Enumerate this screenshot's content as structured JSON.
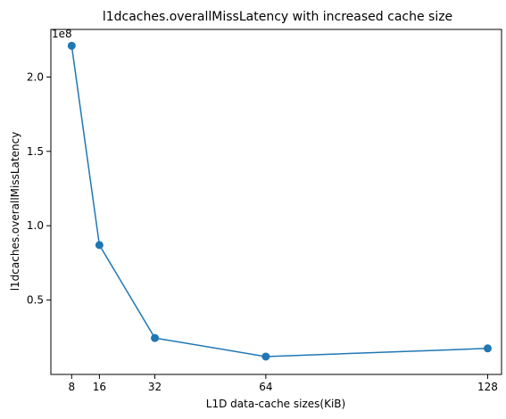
{
  "chart_data": {
    "type": "line",
    "title": "l1dcaches.overallMissLatency with increased cache size",
    "xlabel": "L1D data-cache sizes(KiB)",
    "ylabel": "l1dcaches.overallMissLatency",
    "y_offset_label": "1e8",
    "x_tick_values": [
      8,
      16,
      32,
      64,
      128
    ],
    "x_tick_labels": [
      "8",
      "16",
      "32",
      "64",
      "128"
    ],
    "y_tick_values": [
      0.5,
      1.0,
      1.5,
      2.0
    ],
    "y_tick_labels": [
      "0.5",
      "1.0",
      "1.5",
      "2.0"
    ],
    "xlim": [
      2,
      132
    ],
    "ylim": [
      0.0,
      2.32
    ],
    "grid": false,
    "series": [
      {
        "x": [
          8,
          16,
          32,
          64,
          128
        ],
        "y": [
          2.21,
          0.87,
          0.245,
          0.12,
          0.175
        ],
        "color": "#1f77b4",
        "marker": "circle"
      }
    ]
  }
}
